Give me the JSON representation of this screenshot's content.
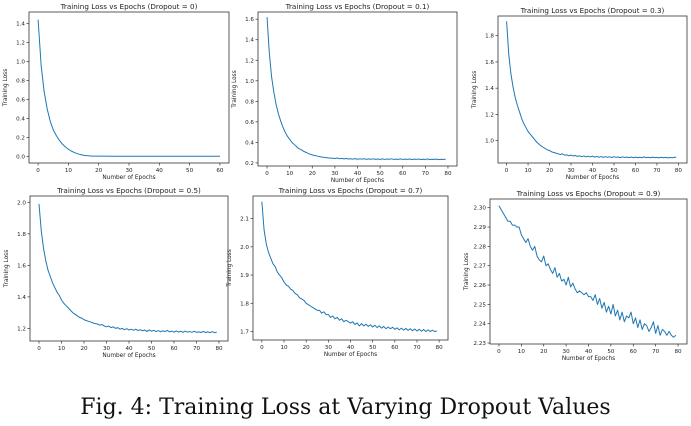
{
  "caption": "Fig. 4: Training Loss at Varying Dropout Values",
  "line_color": "#1f77b4",
  "chart_data": [
    {
      "type": "line",
      "title": "Training Loss vs Epochs (Dropout = 0)",
      "xlabel": "Number of Epochs",
      "ylabel": "Training Loss",
      "xlim": [
        -3,
        63
      ],
      "ylim": [
        -0.07,
        1.52
      ],
      "xticks": [
        0,
        10,
        20,
        30,
        40,
        50,
        60
      ],
      "yticks": [
        0.0,
        0.2,
        0.4,
        0.6,
        0.8,
        1.0,
        1.2,
        1.4
      ],
      "ytick_decimals": 1,
      "series": [
        {
          "x": [
            0,
            1,
            2,
            3,
            4,
            5,
            6,
            7,
            8,
            9,
            10,
            11,
            12,
            13,
            14,
            15,
            16,
            17,
            18,
            20,
            25,
            30,
            35,
            40,
            45,
            50,
            55,
            60
          ],
          "y": [
            1.44,
            0.96,
            0.68,
            0.5,
            0.37,
            0.28,
            0.22,
            0.17,
            0.13,
            0.1,
            0.075,
            0.055,
            0.04,
            0.028,
            0.019,
            0.012,
            0.008,
            0.005,
            0.003,
            0.002,
            0.001,
            0.001,
            0.001,
            0.001,
            0.001,
            0.001,
            0.001,
            0.001
          ]
        }
      ]
    },
    {
      "type": "line",
      "title": "Training Loss vs Epochs (Dropout = 0.1)",
      "xlabel": "Number of Epochs",
      "ylabel": "Training Loss",
      "xlim": [
        -4,
        84
      ],
      "ylim": [
        0.17,
        1.67
      ],
      "xticks": [
        0,
        10,
        20,
        30,
        40,
        50,
        60,
        70,
        80
      ],
      "yticks": [
        0.2,
        0.4,
        0.6,
        0.8,
        1.0,
        1.2,
        1.4,
        1.6
      ],
      "ytick_decimals": 1,
      "series": [
        {
          "x": [
            0,
            1,
            2,
            3,
            4,
            5,
            6,
            7,
            8,
            9,
            10,
            11,
            12,
            13,
            14,
            15,
            16,
            17,
            18,
            19,
            20,
            21,
            22,
            23,
            24,
            25,
            26,
            27,
            28,
            29,
            30,
            31,
            32,
            33,
            34,
            35,
            36,
            37,
            38,
            39,
            40,
            41,
            42,
            43,
            44,
            45,
            46,
            47,
            48,
            49,
            50,
            51,
            52,
            53,
            54,
            55,
            56,
            57,
            58,
            59,
            60,
            61,
            62,
            63,
            64,
            65,
            66,
            67,
            68,
            69,
            70,
            71,
            72,
            73,
            74,
            75,
            76,
            77,
            78,
            79
          ],
          "y": [
            1.62,
            1.27,
            1.04,
            0.89,
            0.77,
            0.68,
            0.61,
            0.55,
            0.5,
            0.46,
            0.43,
            0.4,
            0.38,
            0.36,
            0.34,
            0.33,
            0.315,
            0.305,
            0.295,
            0.285,
            0.278,
            0.272,
            0.268,
            0.262,
            0.258,
            0.255,
            0.252,
            0.249,
            0.247,
            0.245,
            0.243,
            0.248,
            0.24,
            0.244,
            0.239,
            0.243,
            0.238,
            0.241,
            0.237,
            0.242,
            0.236,
            0.24,
            0.237,
            0.241,
            0.235,
            0.239,
            0.236,
            0.24,
            0.235,
            0.238,
            0.235,
            0.239,
            0.234,
            0.238,
            0.236,
            0.24,
            0.234,
            0.237,
            0.235,
            0.239,
            0.234,
            0.237,
            0.235,
            0.238,
            0.233,
            0.237,
            0.234,
            0.238,
            0.233,
            0.236,
            0.234,
            0.238,
            0.233,
            0.236,
            0.234,
            0.237,
            0.232,
            0.236,
            0.233,
            0.237
          ]
        }
      ]
    },
    {
      "type": "line",
      "title": "Training Loss vs Epochs (Dropout = 0.3)",
      "xlabel": "Number of Epochs",
      "ylabel": "Training Loss",
      "xlim": [
        -4,
        84
      ],
      "ylim": [
        0.83,
        1.95
      ],
      "xticks": [
        0,
        10,
        20,
        30,
        40,
        50,
        60,
        70,
        80
      ],
      "yticks": [
        1.0,
        1.2,
        1.4,
        1.6,
        1.8
      ],
      "ytick_decimals": 1,
      "series": [
        {
          "x": [
            0,
            1,
            2,
            3,
            4,
            5,
            6,
            7,
            8,
            9,
            10,
            11,
            12,
            13,
            14,
            15,
            16,
            17,
            18,
            19,
            20,
            21,
            22,
            23,
            24,
            25,
            26,
            27,
            28,
            29,
            30,
            31,
            32,
            33,
            34,
            35,
            36,
            37,
            38,
            39,
            40,
            41,
            42,
            43,
            44,
            45,
            46,
            47,
            48,
            49,
            50,
            51,
            52,
            53,
            54,
            55,
            56,
            57,
            58,
            59,
            60,
            61,
            62,
            63,
            64,
            65,
            66,
            67,
            68,
            69,
            70,
            71,
            72,
            73,
            74,
            75,
            76,
            77,
            78,
            79
          ],
          "y": [
            1.91,
            1.66,
            1.51,
            1.41,
            1.33,
            1.27,
            1.22,
            1.17,
            1.13,
            1.1,
            1.07,
            1.05,
            1.03,
            1.01,
            0.99,
            0.975,
            0.96,
            0.95,
            0.94,
            0.93,
            0.925,
            0.915,
            0.91,
            0.905,
            0.9,
            0.895,
            0.9,
            0.89,
            0.892,
            0.885,
            0.89,
            0.883,
            0.887,
            0.88,
            0.885,
            0.878,
            0.884,
            0.877,
            0.882,
            0.876,
            0.883,
            0.875,
            0.88,
            0.874,
            0.879,
            0.873,
            0.878,
            0.874,
            0.877,
            0.872,
            0.878,
            0.873,
            0.876,
            0.871,
            0.877,
            0.872,
            0.875,
            0.871,
            0.876,
            0.87,
            0.875,
            0.871,
            0.874,
            0.87,
            0.876,
            0.871,
            0.874,
            0.87,
            0.875,
            0.871,
            0.873,
            0.869,
            0.874,
            0.87,
            0.873,
            0.869,
            0.872,
            0.87,
            0.873,
            0.875
          ]
        }
      ]
    },
    {
      "type": "line",
      "title": "Training Loss vs Epochs (Dropout = 0.5)",
      "xlabel": "Number of Epochs",
      "ylabel": "Training Loss",
      "xlim": [
        -4,
        84
      ],
      "ylim": [
        1.12,
        2.04
      ],
      "xticks": [
        0,
        10,
        20,
        30,
        40,
        50,
        60,
        70,
        80
      ],
      "yticks": [
        1.2,
        1.4,
        1.6,
        1.8,
        2.0
      ],
      "ytick_decimals": 1,
      "series": [
        {
          "x": [
            0,
            1,
            2,
            3,
            4,
            5,
            6,
            7,
            8,
            9,
            10,
            11,
            12,
            13,
            14,
            15,
            16,
            17,
            18,
            19,
            20,
            21,
            22,
            23,
            24,
            25,
            26,
            27,
            28,
            29,
            30,
            31,
            32,
            33,
            34,
            35,
            36,
            37,
            38,
            39,
            40,
            41,
            42,
            43,
            44,
            45,
            46,
            47,
            48,
            49,
            50,
            51,
            52,
            53,
            54,
            55,
            56,
            57,
            58,
            59,
            60,
            61,
            62,
            63,
            64,
            65,
            66,
            67,
            68,
            69,
            70,
            71,
            72,
            73,
            74,
            75,
            76,
            77,
            78,
            79
          ],
          "y": [
            1.99,
            1.82,
            1.71,
            1.63,
            1.57,
            1.53,
            1.49,
            1.46,
            1.43,
            1.41,
            1.38,
            1.36,
            1.345,
            1.33,
            1.315,
            1.3,
            1.29,
            1.28,
            1.27,
            1.265,
            1.255,
            1.25,
            1.245,
            1.24,
            1.235,
            1.23,
            1.228,
            1.22,
            1.225,
            1.215,
            1.21,
            1.215,
            1.205,
            1.21,
            1.2,
            1.205,
            1.195,
            1.2,
            1.192,
            1.198,
            1.19,
            1.195,
            1.188,
            1.195,
            1.186,
            1.192,
            1.185,
            1.19,
            1.18,
            1.19,
            1.182,
            1.188,
            1.18,
            1.186,
            1.178,
            1.185,
            1.18,
            1.187,
            1.178,
            1.183,
            1.176,
            1.184,
            1.177,
            1.182,
            1.175,
            1.183,
            1.176,
            1.18,
            1.175,
            1.182,
            1.175,
            1.178,
            1.174,
            1.181,
            1.174,
            1.178,
            1.173,
            1.18,
            1.172,
            1.177
          ]
        }
      ]
    },
    {
      "type": "line",
      "title": "Training Loss vs Epochs (Dropout = 0.7)",
      "xlabel": "Number of Epochs",
      "ylabel": "Training Loss",
      "xlim": [
        -4,
        84
      ],
      "ylim": [
        1.67,
        2.18
      ],
      "xticks": [
        0,
        10,
        20,
        30,
        40,
        50,
        60,
        70,
        80
      ],
      "yticks": [
        1.7,
        1.8,
        1.9,
        2.0,
        2.1
      ],
      "ytick_decimals": 1,
      "series": [
        {
          "x": [
            0,
            1,
            2,
            3,
            4,
            5,
            6,
            7,
            8,
            9,
            10,
            11,
            12,
            13,
            14,
            15,
            16,
            17,
            18,
            19,
            20,
            21,
            22,
            23,
            24,
            25,
            26,
            27,
            28,
            29,
            30,
            31,
            32,
            33,
            34,
            35,
            36,
            37,
            38,
            39,
            40,
            41,
            42,
            43,
            44,
            45,
            46,
            47,
            48,
            49,
            50,
            51,
            52,
            53,
            54,
            55,
            56,
            57,
            58,
            59,
            60,
            61,
            62,
            63,
            64,
            65,
            66,
            67,
            68,
            69,
            70,
            71,
            72,
            73,
            74,
            75,
            76,
            77,
            78,
            79
          ],
          "y": [
            2.16,
            2.06,
            2.01,
            1.98,
            1.96,
            1.94,
            1.93,
            1.91,
            1.9,
            1.89,
            1.875,
            1.865,
            1.86,
            1.85,
            1.845,
            1.835,
            1.83,
            1.82,
            1.815,
            1.81,
            1.8,
            1.795,
            1.79,
            1.785,
            1.78,
            1.775,
            1.775,
            1.765,
            1.77,
            1.76,
            1.76,
            1.75,
            1.755,
            1.745,
            1.75,
            1.74,
            1.745,
            1.735,
            1.74,
            1.735,
            1.73,
            1.735,
            1.725,
            1.73,
            1.72,
            1.728,
            1.72,
            1.726,
            1.718,
            1.724,
            1.716,
            1.722,
            1.714,
            1.72,
            1.712,
            1.718,
            1.71,
            1.716,
            1.71,
            1.715,
            1.708,
            1.713,
            1.706,
            1.712,
            1.705,
            1.711,
            1.704,
            1.71,
            1.703,
            1.709,
            1.702,
            1.708,
            1.701,
            1.707,
            1.7,
            1.706,
            1.7,
            1.705,
            1.7,
            1.702
          ]
        }
      ]
    },
    {
      "type": "line",
      "title": "Training Loss vs Epochs (Dropout = 0.9)",
      "xlabel": "Number of Epochs",
      "ylabel": "Training Loss",
      "xlim": [
        -4,
        84
      ],
      "ylim": [
        2.2295,
        2.3045
      ],
      "xticks": [
        0,
        10,
        20,
        30,
        40,
        50,
        60,
        70,
        80
      ],
      "yticks": [
        2.23,
        2.24,
        2.25,
        2.26,
        2.27,
        2.28,
        2.29,
        2.3
      ],
      "ytick_decimals": 2,
      "series": [
        {
          "x": [
            0,
            1,
            2,
            3,
            4,
            5,
            6,
            7,
            8,
            9,
            10,
            11,
            12,
            13,
            14,
            15,
            16,
            17,
            18,
            19,
            20,
            21,
            22,
            23,
            24,
            25,
            26,
            27,
            28,
            29,
            30,
            31,
            32,
            33,
            34,
            35,
            36,
            37,
            38,
            39,
            40,
            41,
            42,
            43,
            44,
            45,
            46,
            47,
            48,
            49,
            50,
            51,
            52,
            53,
            54,
            55,
            56,
            57,
            58,
            59,
            60,
            61,
            62,
            63,
            64,
            65,
            66,
            67,
            68,
            69,
            70,
            71,
            72,
            73,
            74,
            75,
            76,
            77,
            78,
            79
          ],
          "y": [
            2.301,
            2.299,
            2.297,
            2.295,
            2.293,
            2.293,
            2.291,
            2.291,
            2.29,
            2.29,
            2.286,
            2.284,
            2.282,
            2.284,
            2.28,
            2.278,
            2.28,
            2.275,
            2.273,
            2.272,
            2.275,
            2.27,
            2.271,
            2.268,
            2.266,
            2.269,
            2.264,
            2.266,
            2.262,
            2.263,
            2.26,
            2.264,
            2.259,
            2.261,
            2.258,
            2.256,
            2.257,
            2.256,
            2.255,
            2.256,
            2.254,
            2.254,
            2.252,
            2.255,
            2.25,
            2.253,
            2.248,
            2.251,
            2.246,
            2.249,
            2.245,
            2.25,
            2.244,
            2.247,
            2.242,
            2.246,
            2.241,
            2.244,
            2.243,
            2.246,
            2.24,
            2.243,
            2.238,
            2.242,
            2.237,
            2.24,
            2.239,
            2.236,
            2.238,
            2.241,
            2.235,
            2.239,
            2.234,
            2.237,
            2.236,
            2.234,
            2.236,
            2.234,
            2.233,
            2.234
          ]
        }
      ]
    }
  ]
}
